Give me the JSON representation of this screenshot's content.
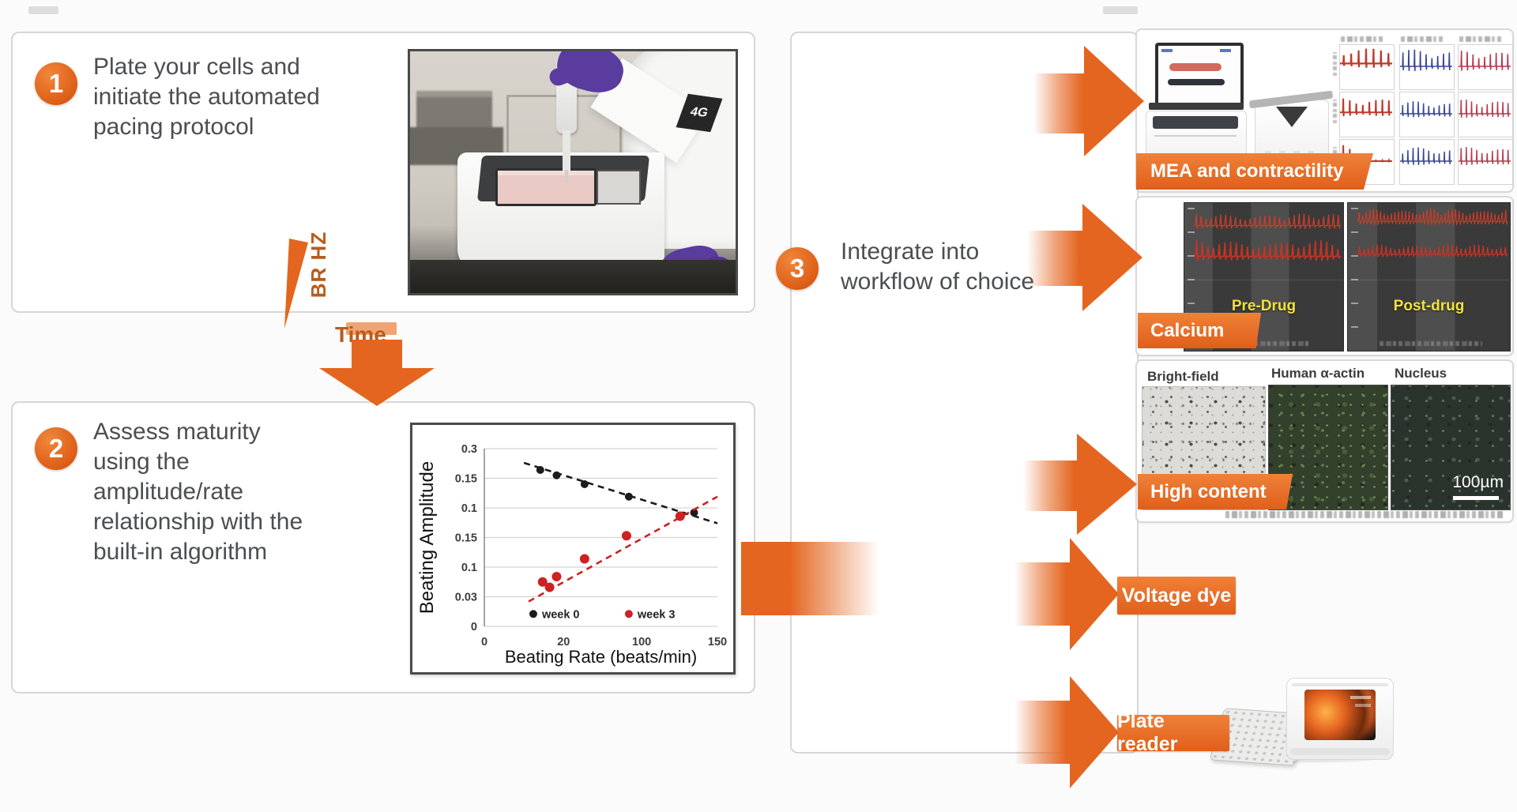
{
  "page": {
    "background": "#fbfbfb",
    "accent": "#E4651F",
    "step_text_color": "#4B4E52",
    "panel_border": "#D6D6D6",
    "pacing_label_color": "#B85C1C"
  },
  "steps": [
    {
      "number": "1",
      "text": "Plate your cells and initiate the automated pacing protocol"
    },
    {
      "number": "2",
      "text": "Assess maturity using the amplitude/rate relationship with the built-in algorithm"
    },
    {
      "number": "3",
      "text": "Integrate into workflow of choice"
    }
  ],
  "pacing_diagram": {
    "y_axis_label": "BR HZ",
    "x_axis_label": "Time"
  },
  "step1_photo": {
    "badge": "4G"
  },
  "chart_data": {
    "type": "scatter",
    "title": "",
    "xlabel": "Beating Rate (beats/min)",
    "ylabel": "Beating Amplitude",
    "x_range_beats_per_min": [
      0,
      150
    ],
    "x_ticks": [
      {
        "label": "0",
        "f": 0
      },
      {
        "label": "20",
        "f": 0.34
      },
      {
        "label": "100",
        "f": 0.675
      },
      {
        "label": "150",
        "f": 1
      }
    ],
    "y_tick_labels": [
      "0.3",
      "0.15",
      "0.1",
      "0.15",
      "0.1",
      "0.03",
      "0"
    ],
    "grid": true,
    "legend_position": "bottom-inside",
    "series": [
      {
        "name": "week 0",
        "color": "#1c1c1c",
        "marker_r": 5,
        "line_style": "dashed",
        "points_frac": [
          [
            0.24,
            0.12
          ],
          [
            0.31,
            0.15
          ],
          [
            0.43,
            0.2
          ],
          [
            0.62,
            0.27
          ],
          [
            0.9,
            0.36
          ]
        ],
        "points_est_beats_amp": [
          [
            36,
            0.27
          ],
          [
            47,
            0.26
          ],
          [
            64,
            0.24
          ],
          [
            93,
            0.22
          ],
          [
            135,
            0.19
          ]
        ],
        "trend_frac": [
          [
            0.17,
            0.08
          ],
          [
            1.0,
            0.42
          ]
        ]
      },
      {
        "name": "week 3",
        "color": "#cc2222",
        "marker_r": 6,
        "line_style": "dashed",
        "points_frac": [
          [
            0.25,
            0.75
          ],
          [
            0.28,
            0.78
          ],
          [
            0.31,
            0.72
          ],
          [
            0.43,
            0.62
          ],
          [
            0.61,
            0.49
          ],
          [
            0.84,
            0.38
          ]
        ],
        "points_est_beats_amp": [
          [
            38,
            0.08
          ],
          [
            42,
            0.07
          ],
          [
            47,
            0.09
          ],
          [
            64,
            0.11
          ],
          [
            92,
            0.15
          ],
          [
            126,
            0.19
          ]
        ],
        "trend_frac": [
          [
            0.19,
            0.86
          ],
          [
            1.0,
            0.27
          ]
        ]
      }
    ]
  },
  "workflow_outputs": [
    {
      "label": "MEA and contractility"
    },
    {
      "label": "Calcium",
      "panel_left_caption": "Pre-Drug",
      "panel_right_caption": "Post-drug"
    },
    {
      "label": "High content",
      "channel_labels": [
        "Bright-field",
        "Human α-actin",
        "Nucleus"
      ],
      "scale_bar": "100µm"
    },
    {
      "label": "Voltage dye"
    },
    {
      "label": "Plate reader"
    }
  ]
}
